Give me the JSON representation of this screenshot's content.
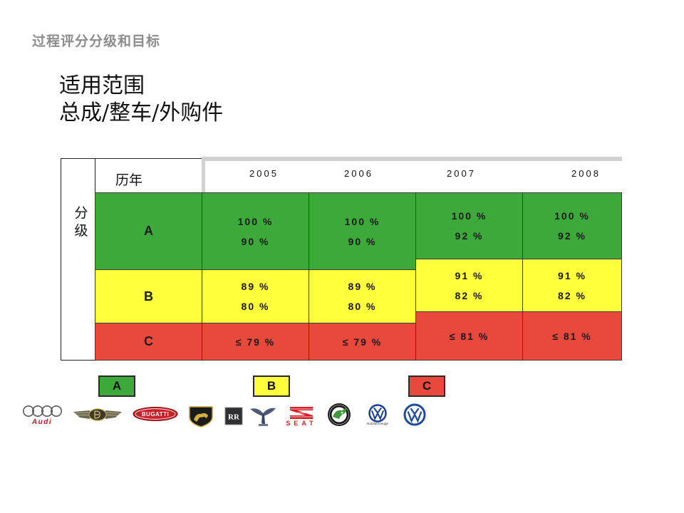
{
  "slide_title": "过程评分分级和目标",
  "scope": {
    "heading": "适用范围",
    "subheading": "总成/整车/外购件"
  },
  "table": {
    "row_axis_label": "分级",
    "col_axis_label": "历年",
    "grades": [
      "A",
      "B",
      "C"
    ],
    "columns": [
      {
        "year": "2005",
        "A": [
          "100 %",
          "90 %"
        ],
        "B": [
          "89 %",
          "80 %"
        ],
        "C": [
          "≤ 79 %"
        ]
      },
      {
        "year": "2006",
        "A": [
          "100 %",
          "90 %"
        ],
        "B": [
          "89 %",
          "80 %"
        ],
        "C": [
          "≤ 79 %"
        ]
      },
      {
        "year": "2007",
        "A": [
          "100 %",
          "92 %"
        ],
        "B": [
          "91 %",
          "82 %"
        ],
        "C": [
          "≤ 81 %"
        ]
      },
      {
        "year": "2008",
        "A": [
          "100 %",
          "92 %"
        ],
        "B": [
          "91 %",
          "82 %"
        ],
        "C": [
          "≤ 81 %"
        ]
      }
    ]
  },
  "legend": [
    {
      "label": "A"
    },
    {
      "label": "B"
    },
    {
      "label": "C"
    }
  ],
  "colors": {
    "grade_A": "#3ca93a",
    "grade_B": "#ffff3b",
    "grade_C": "#e9483d",
    "title_text": "#8c8c8c",
    "header_shade": "#d2d2d2"
  },
  "logos": [
    {
      "icon": "audi-logo",
      "lettering": "Audi"
    },
    {
      "icon": "bentley-logo"
    },
    {
      "icon": "bugatti-logo",
      "lettering": "BUGATTI"
    },
    {
      "icon": "lamborghini-logo"
    },
    {
      "icon": "rolls-royce-monogram-logo",
      "lettering": "RR"
    },
    {
      "icon": "spirit-of-ecstasy-logo"
    },
    {
      "icon": "seat-logo",
      "lettering": "SEAT"
    },
    {
      "icon": "skoda-logo"
    },
    {
      "icon": "vw-commercial-vehicles-logo",
      "lettering": "Nutzfahrzeuge"
    },
    {
      "icon": "vw-logo"
    }
  ]
}
